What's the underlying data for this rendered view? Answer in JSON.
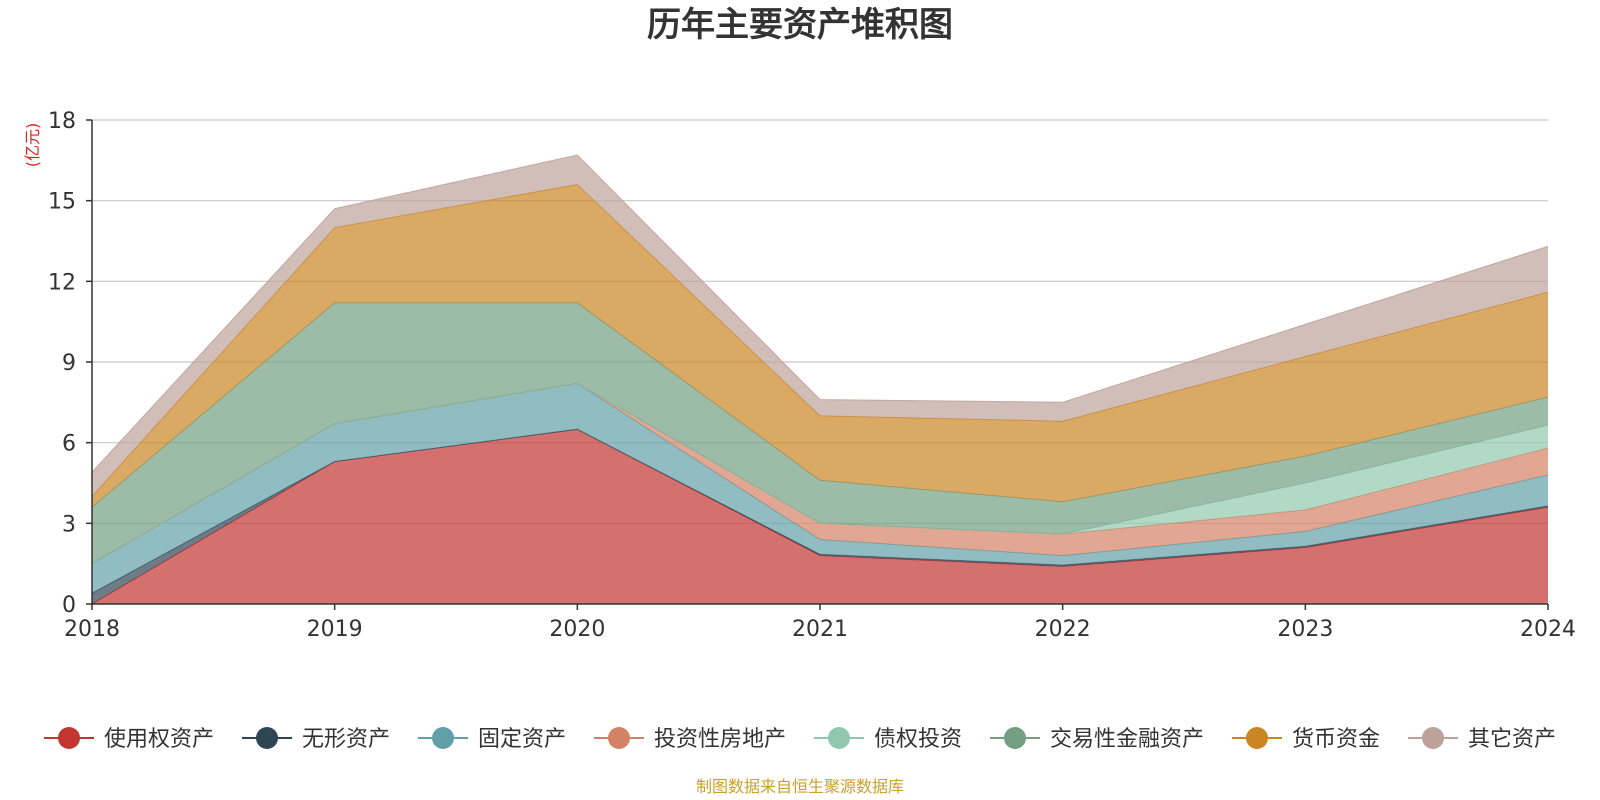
{
  "chart_data": {
    "type": "area",
    "stacked": true,
    "title": "历年主要资产堆积图",
    "unit_label": "(亿元)",
    "x": [
      "2018",
      "2019",
      "2020",
      "2021",
      "2022",
      "2023",
      "2024"
    ],
    "ylim": [
      0,
      18
    ],
    "yticks": [
      "0",
      "3",
      "6",
      "9",
      "12",
      "15",
      "18"
    ],
    "grid": true,
    "legend_position": "bottom",
    "series": [
      {
        "name": "使用权资产",
        "color": "#c23531",
        "values": [
          0.0,
          5.3,
          6.5,
          1.8,
          1.4,
          2.1,
          3.6
        ]
      },
      {
        "name": "无形资产",
        "color": "#2f4554",
        "values": [
          0.4,
          0.0,
          0.0,
          0.05,
          0.05,
          0.05,
          0.05
        ]
      },
      {
        "name": "固定资产",
        "color": "#61a0a8",
        "values": [
          1.1,
          1.4,
          1.7,
          0.55,
          0.35,
          0.55,
          1.15
        ]
      },
      {
        "name": "投资性房地产",
        "color": "#d48265",
        "values": [
          0.0,
          0.0,
          0.0,
          0.6,
          0.8,
          0.8,
          1.0
        ]
      },
      {
        "name": "债权投资",
        "color": "#91c7ae",
        "values": [
          0.0,
          0.0,
          0.0,
          0.0,
          0.0,
          1.0,
          0.85
        ]
      },
      {
        "name": "交易性金融资产",
        "color": "#749f83",
        "values": [
          2.1,
          4.5,
          3.0,
          1.6,
          1.2,
          1.0,
          1.05
        ]
      },
      {
        "name": "货币资金",
        "color": "#ca8622",
        "values": [
          0.4,
          2.8,
          4.4,
          2.4,
          3.0,
          3.7,
          3.9
        ]
      },
      {
        "name": "其它资产",
        "color": "#bda29a",
        "values": [
          0.9,
          0.7,
          1.1,
          0.6,
          0.7,
          1.2,
          1.7
        ]
      }
    ]
  },
  "footer": {
    "source": "制图数据来自恒生聚源数据库"
  }
}
